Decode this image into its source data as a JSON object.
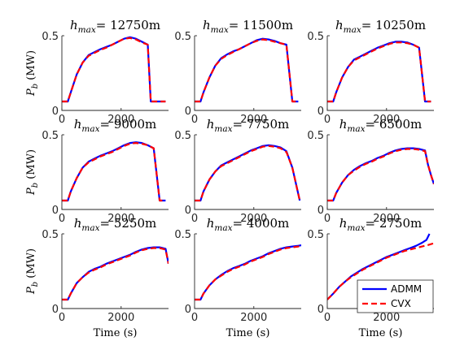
{
  "figure": {
    "ylabel_var": "P",
    "ylabel_sub": "b",
    "ylabel_unit": " (MW)",
    "xlabel": "Time (s)",
    "title_var": "h",
    "title_sub": "max",
    "title_eq": "= "
  },
  "legend": {
    "admm_label": "ADMM",
    "cvx_label": "CVX",
    "placement": "lower-right of last panel"
  },
  "colors": {
    "admm": "#0000ff",
    "cvx": "#ff0000",
    "axis": "#262626"
  },
  "chart_data": [
    {
      "type": "line",
      "title_value": "12750m",
      "xlim": [
        0,
        3600
      ],
      "ylim": [
        0,
        0.5
      ],
      "xticks": [
        0,
        2000
      ],
      "yticks": [
        0,
        0.5
      ],
      "series": [
        {
          "name": "ADMM",
          "style": "solid",
          "x": [
            0,
            200,
            300,
            500,
            700,
            900,
            1100,
            1300,
            1500,
            1700,
            1900,
            2100,
            2300,
            2500,
            2700,
            2900,
            3000,
            3200,
            3500
          ],
          "y": [
            0.06,
            0.06,
            0.12,
            0.24,
            0.32,
            0.37,
            0.39,
            0.41,
            0.425,
            0.44,
            0.46,
            0.48,
            0.49,
            0.48,
            0.46,
            0.44,
            0.06,
            0.06,
            0.06
          ]
        },
        {
          "name": "CVX",
          "style": "dashed",
          "x": [
            0,
            200,
            300,
            500,
            700,
            900,
            1100,
            1300,
            1500,
            1700,
            1900,
            2100,
            2300,
            2500,
            2700,
            2900,
            3000,
            3200,
            3500
          ],
          "y": [
            0.06,
            0.06,
            0.12,
            0.24,
            0.32,
            0.365,
            0.385,
            0.405,
            0.42,
            0.44,
            0.46,
            0.48,
            0.485,
            0.475,
            0.455,
            0.44,
            0.06,
            0.06,
            0.06
          ]
        }
      ]
    },
    {
      "type": "line",
      "title_value": "11500m",
      "xlim": [
        0,
        3600
      ],
      "ylim": [
        0,
        0.5
      ],
      "xticks": [
        0,
        2000
      ],
      "yticks": [
        0,
        0.5
      ],
      "series": [
        {
          "name": "ADMM",
          "style": "solid",
          "x": [
            0,
            200,
            300,
            500,
            700,
            900,
            1100,
            1300,
            1500,
            1700,
            1900,
            2100,
            2300,
            2500,
            2700,
            2900,
            3100,
            3300,
            3500
          ],
          "y": [
            0.06,
            0.06,
            0.12,
            0.22,
            0.3,
            0.35,
            0.375,
            0.395,
            0.41,
            0.43,
            0.45,
            0.47,
            0.48,
            0.475,
            0.465,
            0.45,
            0.44,
            0.06,
            0.06
          ]
        },
        {
          "name": "CVX",
          "style": "dashed",
          "x": [
            0,
            200,
            300,
            500,
            700,
            900,
            1100,
            1300,
            1500,
            1700,
            1900,
            2100,
            2300,
            2500,
            2700,
            2900,
            3100,
            3300,
            3500
          ],
          "y": [
            0.06,
            0.06,
            0.12,
            0.22,
            0.3,
            0.345,
            0.37,
            0.39,
            0.41,
            0.43,
            0.45,
            0.465,
            0.475,
            0.47,
            0.46,
            0.45,
            0.44,
            0.06,
            0.06
          ]
        }
      ]
    },
    {
      "type": "line",
      "title_value": "10250m",
      "xlim": [
        0,
        3600
      ],
      "ylim": [
        0,
        0.5
      ],
      "xticks": [
        0,
        2000
      ],
      "yticks": [
        0,
        0.5
      ],
      "series": [
        {
          "name": "ADMM",
          "style": "solid",
          "x": [
            0,
            200,
            300,
            500,
            700,
            900,
            1100,
            1300,
            1500,
            1700,
            1900,
            2100,
            2300,
            2500,
            2700,
            2900,
            3100,
            3300,
            3500
          ],
          "y": [
            0.06,
            0.06,
            0.12,
            0.22,
            0.29,
            0.34,
            0.36,
            0.38,
            0.4,
            0.42,
            0.435,
            0.45,
            0.46,
            0.46,
            0.455,
            0.44,
            0.42,
            0.06,
            0.06
          ]
        },
        {
          "name": "CVX",
          "style": "dashed",
          "x": [
            0,
            200,
            300,
            500,
            700,
            900,
            1100,
            1300,
            1500,
            1700,
            1900,
            2100,
            2300,
            2500,
            2700,
            2900,
            3100,
            3300,
            3500
          ],
          "y": [
            0.06,
            0.06,
            0.12,
            0.22,
            0.29,
            0.335,
            0.355,
            0.375,
            0.395,
            0.415,
            0.43,
            0.445,
            0.455,
            0.455,
            0.45,
            0.44,
            0.42,
            0.06,
            0.06
          ]
        }
      ]
    },
    {
      "type": "line",
      "title_value": "9000m",
      "xlim": [
        0,
        3600
      ],
      "ylim": [
        0,
        0.5
      ],
      "xticks": [
        0,
        2000
      ],
      "yticks": [
        0,
        0.5
      ],
      "series": [
        {
          "name": "ADMM",
          "style": "solid",
          "x": [
            0,
            200,
            300,
            500,
            700,
            900,
            1100,
            1300,
            1500,
            1700,
            1900,
            2100,
            2300,
            2500,
            2700,
            2900,
            3100,
            3300,
            3500
          ],
          "y": [
            0.06,
            0.06,
            0.12,
            0.21,
            0.28,
            0.32,
            0.34,
            0.36,
            0.375,
            0.39,
            0.41,
            0.43,
            0.445,
            0.45,
            0.445,
            0.43,
            0.41,
            0.06,
            0.06
          ]
        },
        {
          "name": "CVX",
          "style": "dashed",
          "x": [
            0,
            200,
            300,
            500,
            700,
            900,
            1100,
            1300,
            1500,
            1700,
            1900,
            2100,
            2300,
            2500,
            2700,
            2900,
            3100,
            3300,
            3500
          ],
          "y": [
            0.06,
            0.06,
            0.12,
            0.21,
            0.28,
            0.315,
            0.335,
            0.355,
            0.37,
            0.385,
            0.405,
            0.425,
            0.44,
            0.445,
            0.44,
            0.43,
            0.41,
            0.06,
            0.06
          ]
        }
      ]
    },
    {
      "type": "line",
      "title_value": "7750m",
      "xlim": [
        0,
        3600
      ],
      "ylim": [
        0,
        0.5
      ],
      "xticks": [
        0,
        2000
      ],
      "yticks": [
        0,
        0.5
      ],
      "series": [
        {
          "name": "ADMM",
          "style": "solid",
          "x": [
            0,
            200,
            300,
            500,
            700,
            900,
            1100,
            1300,
            1500,
            1700,
            1900,
            2100,
            2300,
            2500,
            2700,
            2900,
            3100,
            3300,
            3550
          ],
          "y": [
            0.06,
            0.06,
            0.12,
            0.2,
            0.255,
            0.295,
            0.315,
            0.335,
            0.355,
            0.375,
            0.395,
            0.41,
            0.425,
            0.43,
            0.425,
            0.415,
            0.39,
            0.28,
            0.06
          ]
        },
        {
          "name": "CVX",
          "style": "dashed",
          "x": [
            0,
            200,
            300,
            500,
            700,
            900,
            1100,
            1300,
            1500,
            1700,
            1900,
            2100,
            2300,
            2500,
            2700,
            2900,
            3100,
            3300,
            3550
          ],
          "y": [
            0.06,
            0.06,
            0.12,
            0.2,
            0.255,
            0.29,
            0.31,
            0.33,
            0.35,
            0.37,
            0.39,
            0.405,
            0.42,
            0.425,
            0.42,
            0.41,
            0.385,
            0.28,
            0.06
          ]
        }
      ]
    },
    {
      "type": "line",
      "title_value": "6500m",
      "xlim": [
        0,
        3600
      ],
      "ylim": [
        0,
        0.5
      ],
      "xticks": [
        0,
        2000
      ],
      "yticks": [
        0,
        0.5
      ],
      "series": [
        {
          "name": "ADMM",
          "style": "solid",
          "x": [
            0,
            200,
            300,
            500,
            700,
            900,
            1100,
            1300,
            1500,
            1700,
            1900,
            2100,
            2300,
            2500,
            2700,
            2900,
            3100,
            3300,
            3400,
            3500,
            3600
          ],
          "y": [
            0.06,
            0.06,
            0.11,
            0.18,
            0.23,
            0.265,
            0.29,
            0.31,
            0.325,
            0.345,
            0.36,
            0.38,
            0.395,
            0.405,
            0.41,
            0.41,
            0.405,
            0.395,
            0.3,
            0.23,
            0.17
          ]
        },
        {
          "name": "CVX",
          "style": "dashed",
          "x": [
            0,
            200,
            300,
            500,
            700,
            900,
            1100,
            1300,
            1500,
            1700,
            1900,
            2100,
            2300,
            2500,
            2700,
            2900,
            3100,
            3300,
            3400,
            3500,
            3600
          ],
          "y": [
            0.06,
            0.06,
            0.11,
            0.18,
            0.23,
            0.26,
            0.285,
            0.305,
            0.32,
            0.34,
            0.355,
            0.375,
            0.39,
            0.4,
            0.405,
            0.405,
            0.4,
            0.39,
            0.3,
            0.23,
            0.17
          ]
        }
      ]
    },
    {
      "type": "line",
      "title_value": "5250m",
      "xlim": [
        0,
        3600
      ],
      "ylim": [
        0,
        0.5
      ],
      "xticks": [
        0,
        2000
      ],
      "yticks": [
        0,
        0.5
      ],
      "series": [
        {
          "name": "ADMM",
          "style": "solid",
          "x": [
            0,
            200,
            300,
            500,
            700,
            900,
            1100,
            1300,
            1500,
            1700,
            1900,
            2100,
            2300,
            2500,
            2700,
            2900,
            3100,
            3300,
            3400,
            3500,
            3600
          ],
          "y": [
            0.06,
            0.06,
            0.1,
            0.17,
            0.21,
            0.245,
            0.265,
            0.28,
            0.3,
            0.315,
            0.33,
            0.345,
            0.36,
            0.38,
            0.395,
            0.405,
            0.41,
            0.41,
            0.405,
            0.4,
            0.3
          ]
        },
        {
          "name": "CVX",
          "style": "dashed",
          "x": [
            0,
            200,
            300,
            500,
            700,
            900,
            1100,
            1300,
            1500,
            1700,
            1900,
            2100,
            2300,
            2500,
            2700,
            2900,
            3100,
            3300,
            3400,
            3500,
            3600
          ],
          "y": [
            0.06,
            0.06,
            0.1,
            0.17,
            0.21,
            0.24,
            0.26,
            0.275,
            0.295,
            0.31,
            0.325,
            0.34,
            0.355,
            0.375,
            0.39,
            0.4,
            0.405,
            0.405,
            0.4,
            0.395,
            0.3
          ]
        }
      ]
    },
    {
      "type": "line",
      "title_value": "4000m",
      "xlim": [
        0,
        3600
      ],
      "ylim": [
        0,
        0.5
      ],
      "xticks": [
        0,
        2000
      ],
      "yticks": [
        0,
        0.5
      ],
      "series": [
        {
          "name": "ADMM",
          "style": "solid",
          "x": [
            0,
            200,
            300,
            500,
            700,
            900,
            1100,
            1300,
            1500,
            1700,
            1900,
            2100,
            2300,
            2500,
            2700,
            2900,
            3100,
            3300,
            3500,
            3650
          ],
          "y": [
            0.06,
            0.06,
            0.1,
            0.155,
            0.195,
            0.225,
            0.25,
            0.27,
            0.285,
            0.3,
            0.32,
            0.335,
            0.35,
            0.37,
            0.385,
            0.4,
            0.41,
            0.415,
            0.42,
            0.425
          ]
        },
        {
          "name": "CVX",
          "style": "dashed",
          "x": [
            0,
            200,
            300,
            500,
            700,
            900,
            1100,
            1300,
            1500,
            1700,
            1900,
            2100,
            2300,
            2500,
            2700,
            2900,
            3100,
            3300,
            3500,
            3650
          ],
          "y": [
            0.06,
            0.06,
            0.1,
            0.155,
            0.195,
            0.22,
            0.245,
            0.265,
            0.28,
            0.295,
            0.315,
            0.33,
            0.345,
            0.365,
            0.38,
            0.395,
            0.405,
            0.41,
            0.415,
            0.42
          ]
        }
      ]
    },
    {
      "type": "line",
      "title_value": "2750m",
      "xlim": [
        0,
        3600
      ],
      "ylim": [
        0,
        0.5
      ],
      "xticks": [
        0,
        2000
      ],
      "yticks": [
        0,
        0.5
      ],
      "series": [
        {
          "name": "ADMM",
          "style": "solid",
          "x": [
            0,
            200,
            400,
            600,
            800,
            1000,
            1200,
            1400,
            1600,
            1800,
            2000,
            2200,
            2400,
            2600,
            2800,
            3000,
            3200,
            3350,
            3450
          ],
          "y": [
            0.06,
            0.1,
            0.145,
            0.18,
            0.215,
            0.24,
            0.265,
            0.285,
            0.305,
            0.325,
            0.345,
            0.36,
            0.375,
            0.39,
            0.405,
            0.42,
            0.44,
            0.46,
            0.5
          ]
        },
        {
          "name": "CVX",
          "style": "dashed",
          "x": [
            0,
            200,
            400,
            600,
            800,
            1000,
            1200,
            1400,
            1600,
            1800,
            2000,
            2200,
            2400,
            2600,
            2800,
            3000,
            3200,
            3400,
            3650
          ],
          "y": [
            0.06,
            0.1,
            0.145,
            0.18,
            0.21,
            0.235,
            0.26,
            0.28,
            0.3,
            0.32,
            0.34,
            0.355,
            0.37,
            0.385,
            0.395,
            0.405,
            0.415,
            0.425,
            0.44
          ]
        }
      ]
    }
  ]
}
